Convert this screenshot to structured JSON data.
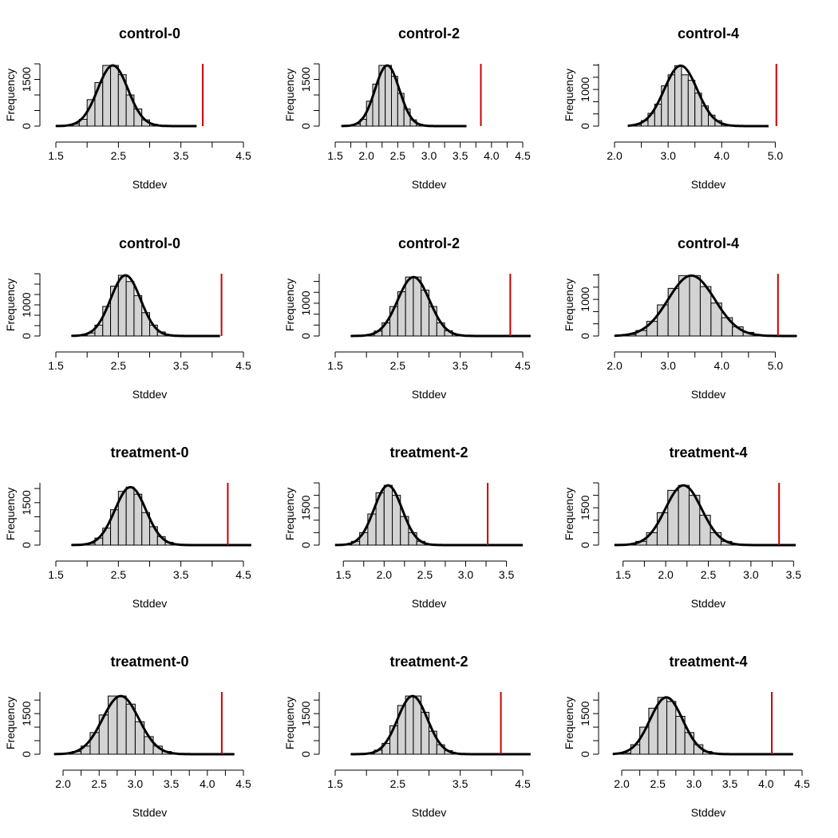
{
  "chart_data": [
    {
      "type": "bar",
      "title": "control-0",
      "xlabel": "Stddev",
      "ylabel": "Frequency",
      "bin_start": 1.5,
      "bin_width": 0.125,
      "values": [
        2,
        20,
        70,
        220,
        850,
        1400,
        1950,
        1950,
        1650,
        1000,
        550,
        200,
        60,
        20,
        5,
        2,
        1,
        0
      ],
      "xticks": [
        "1.5",
        "2.5",
        "3.5",
        "4.5"
      ],
      "yticks": [
        "0",
        "1500"
      ],
      "observed_value": 3.85,
      "xlim": [
        1.5,
        4.5
      ],
      "ylim": [
        0,
        2000
      ]
    },
    {
      "type": "bar",
      "title": "control-2",
      "xlabel": "Stddev",
      "ylabel": "Frequency",
      "bin_start": 1.6,
      "bin_width": 0.1,
      "values": [
        2,
        20,
        70,
        220,
        800,
        1350,
        1950,
        1950,
        1600,
        1050,
        550,
        200,
        60,
        20,
        5,
        2,
        1,
        0,
        0,
        0
      ],
      "xticks": [
        "1.5",
        "2.0",
        "2.5",
        "3.0",
        "3.5",
        "4.0",
        "4.5"
      ],
      "yticks": [
        "0",
        "1500"
      ],
      "observed_value": 3.83,
      "xlim": [
        1.5,
        4.5
      ],
      "ylim": [
        0,
        2000
      ]
    },
    {
      "type": "bar",
      "title": "control-4",
      "xlabel": "Stddev",
      "ylabel": "Frequency",
      "bin_start": 2.25,
      "bin_width": 0.125,
      "values": [
        5,
        40,
        150,
        350,
        600,
        1100,
        1400,
        1650,
        1400,
        1250,
        900,
        550,
        300,
        150,
        40,
        10,
        2,
        1,
        0,
        0,
        0
      ],
      "xticks": [
        "2.0",
        "3.0",
        "4.0",
        "5.0"
      ],
      "yticks": [
        "0",
        "1000"
      ],
      "observed_value": 5.02,
      "xlim": [
        2.0,
        5.5
      ],
      "ylim": [
        0,
        1700
      ]
    },
    {
      "type": "bar",
      "title": "control-0",
      "xlabel": "Stddev",
      "ylabel": "Frequency",
      "bin_start": 1.75,
      "bin_width": 0.125,
      "values": [
        5,
        30,
        100,
        350,
        950,
        1600,
        1950,
        1750,
        1300,
        750,
        350,
        130,
        40,
        10,
        3,
        1,
        0,
        0,
        0
      ],
      "xticks": [
        "1.5",
        "2.5",
        "3.5",
        "4.5"
      ],
      "yticks": [
        "0",
        "1000"
      ],
      "observed_value": 4.15,
      "xlim": [
        1.5,
        4.5
      ],
      "ylim": [
        0,
        2000
      ]
    },
    {
      "type": "bar",
      "title": "control-2",
      "xlabel": "Stddev",
      "ylabel": "Frequency",
      "bin_start": 1.75,
      "bin_width": 0.125,
      "values": [
        2,
        10,
        40,
        150,
        400,
        900,
        1350,
        1800,
        1800,
        1400,
        900,
        400,
        160,
        50,
        15,
        5,
        2,
        1,
        0,
        0,
        0,
        0,
        0
      ],
      "xticks": [
        "1.5",
        "2.5",
        "3.5",
        "4.5"
      ],
      "yticks": [
        "0",
        "1000"
      ],
      "observed_value": 4.3,
      "xlim": [
        1.5,
        4.5
      ],
      "ylim": [
        0,
        1900
      ]
    },
    {
      "type": "bar",
      "title": "control-4",
      "xlabel": "Stddev",
      "ylabel": "Frequency",
      "bin_start": 2.0,
      "bin_width": 0.2,
      "values": [
        5,
        40,
        150,
        400,
        850,
        1300,
        1650,
        1650,
        1350,
        900,
        500,
        250,
        100,
        30,
        10,
        5,
        2
      ],
      "xticks": [
        "2.0",
        "3.0",
        "4.0",
        "5.0"
      ],
      "yticks": [
        "0",
        "1000"
      ],
      "observed_value": 5.05,
      "xlim": [
        2.0,
        5.5
      ],
      "ylim": [
        0,
        1700
      ]
    },
    {
      "type": "bar",
      "title": "treatment-0",
      "xlabel": "Stddev",
      "ylabel": "Frequency",
      "bin_start": 1.75,
      "bin_width": 0.125,
      "values": [
        2,
        20,
        60,
        250,
        600,
        1250,
        1900,
        2050,
        1800,
        1150,
        650,
        300,
        100,
        30,
        10,
        3,
        1,
        0,
        0,
        0,
        0,
        0,
        0
      ],
      "xticks": [
        "1.5",
        "2.5",
        "3.5",
        "4.5"
      ],
      "yticks": [
        "0",
        "1500"
      ],
      "observed_value": 4.25,
      "xlim": [
        1.5,
        4.5
      ],
      "ylim": [
        0,
        2200
      ]
    },
    {
      "type": "bar",
      "title": "treatment-2",
      "xlabel": "Stddev",
      "ylabel": "Frequency",
      "bin_start": 1.4,
      "bin_width": 0.1,
      "values": [
        5,
        30,
        150,
        500,
        1250,
        2100,
        2400,
        2000,
        1150,
        500,
        150,
        40,
        10,
        5,
        2,
        1,
        0,
        0,
        0,
        0,
        0,
        0,
        0
      ],
      "xticks": [
        "1.5",
        "2.0",
        "2.5",
        "3.0",
        "3.5"
      ],
      "yticks": [
        "0",
        "1500"
      ],
      "observed_value": 3.27,
      "xlim": [
        1.4,
        3.7
      ],
      "ylim": [
        0,
        2500
      ]
    },
    {
      "type": "bar",
      "title": "treatment-4",
      "xlabel": "Stddev",
      "ylabel": "Frequency",
      "bin_start": 1.4,
      "bin_width": 0.125,
      "values": [
        5,
        30,
        150,
        500,
        1300,
        2200,
        2400,
        2000,
        1200,
        500,
        150,
        40,
        10,
        2,
        0,
        0,
        0
      ],
      "xticks": [
        "1.5",
        "2.0",
        "2.5",
        "3.0",
        "3.5"
      ],
      "yticks": [
        "0",
        "1500"
      ],
      "observed_value": 3.33,
      "xlim": [
        1.4,
        3.6
      ],
      "ylim": [
        0,
        2500
      ]
    },
    {
      "type": "bar",
      "title": "treatment-0",
      "xlabel": "Stddev",
      "ylabel": "Frequency",
      "bin_start": 1.875,
      "bin_width": 0.125,
      "values": [
        5,
        30,
        100,
        300,
        800,
        1450,
        2150,
        2150,
        1850,
        1200,
        650,
        300,
        100,
        30,
        10,
        3,
        1,
        0,
        0,
        0
      ],
      "xticks": [
        "2.0",
        "2.5",
        "3.0",
        "3.5",
        "4.0",
        "4.5"
      ],
      "yticks": [
        "0",
        "1500"
      ],
      "observed_value": 4.2,
      "xlim": [
        1.9,
        4.5
      ],
      "ylim": [
        0,
        2300
      ]
    },
    {
      "type": "bar",
      "title": "treatment-2",
      "xlabel": "Stddev",
      "ylabel": "Frequency",
      "bin_start": 1.75,
      "bin_width": 0.125,
      "values": [
        2,
        10,
        40,
        150,
        400,
        1050,
        1800,
        2150,
        2150,
        1550,
        850,
        350,
        130,
        40,
        10,
        3,
        1,
        0,
        0,
        0,
        0,
        0,
        0
      ],
      "xticks": [
        "1.5",
        "2.5",
        "3.5",
        "4.5"
      ],
      "yticks": [
        "0",
        "1500"
      ],
      "observed_value": 4.15,
      "xlim": [
        1.5,
        4.5
      ],
      "ylim": [
        0,
        2300
      ]
    },
    {
      "type": "bar",
      "title": "treatment-4",
      "xlabel": "Stddev",
      "ylabel": "Frequency",
      "bin_start": 1.875,
      "bin_width": 0.125,
      "values": [
        5,
        40,
        350,
        1000,
        1700,
        2100,
        1950,
        1400,
        800,
        350,
        100,
        30,
        10,
        3,
        1,
        0,
        0,
        0,
        0,
        0
      ],
      "xticks": [
        "2.0",
        "2.5",
        "3.0",
        "3.5",
        "4.0",
        "4.5"
      ],
      "yticks": [
        "0",
        "1500"
      ],
      "observed_value": 4.08,
      "xlim": [
        1.9,
        4.5
      ],
      "ylim": [
        0,
        2300
      ]
    }
  ]
}
